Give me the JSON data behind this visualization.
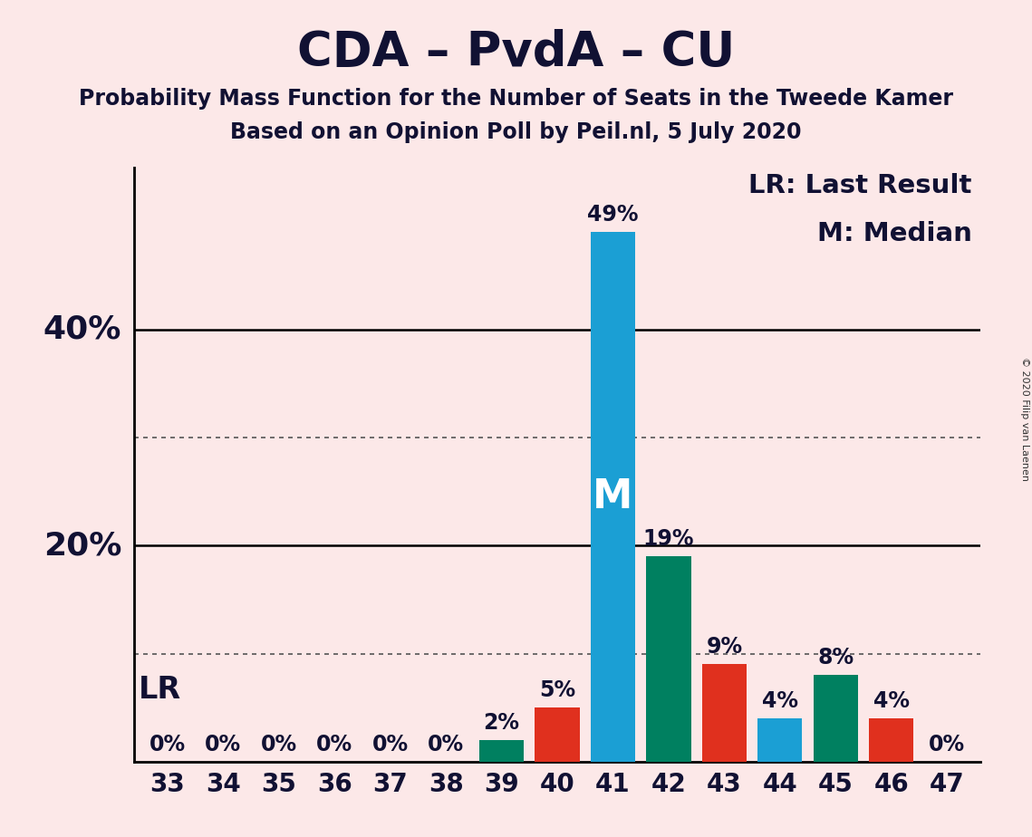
{
  "title": "CDA – PvdA – CU",
  "subtitle1": "Probability Mass Function for the Number of Seats in the Tweede Kamer",
  "subtitle2": "Based on an Opinion Poll by Peil.nl, 5 July 2020",
  "copyright": "© 2020 Filip van Laenen",
  "legend_line1": "LR: Last Result",
  "legend_line2": "M: Median",
  "lr_label": "LR",
  "median_label": "M",
  "median_seat": 41,
  "lr_seat": 41,
  "background_color": "#fce8e8",
  "categories": [
    33,
    34,
    35,
    36,
    37,
    38,
    39,
    40,
    41,
    42,
    43,
    44,
    45,
    46,
    47
  ],
  "values": [
    0,
    0,
    0,
    0,
    0,
    0,
    2,
    5,
    49,
    19,
    9,
    4,
    8,
    4,
    0
  ],
  "bar_colors": [
    "#008060",
    "#008060",
    "#008060",
    "#008060",
    "#008060",
    "#008060",
    "#008060",
    "#e0301e",
    "#1b9fd4",
    "#008060",
    "#e0301e",
    "#1b9fd4",
    "#008060",
    "#e0301e",
    "#008060"
  ],
  "ylim": [
    0,
    55
  ],
  "solid_yticks": [
    20,
    40
  ],
  "dotted_yticks": [
    10,
    30
  ],
  "title_fontsize": 38,
  "subtitle_fontsize": 17,
  "tick_fontsize": 20,
  "bar_label_fontsize": 17,
  "legend_fontsize": 21,
  "lr_fontsize": 24,
  "median_fontsize": 32,
  "axis_label_fontsize": 26
}
